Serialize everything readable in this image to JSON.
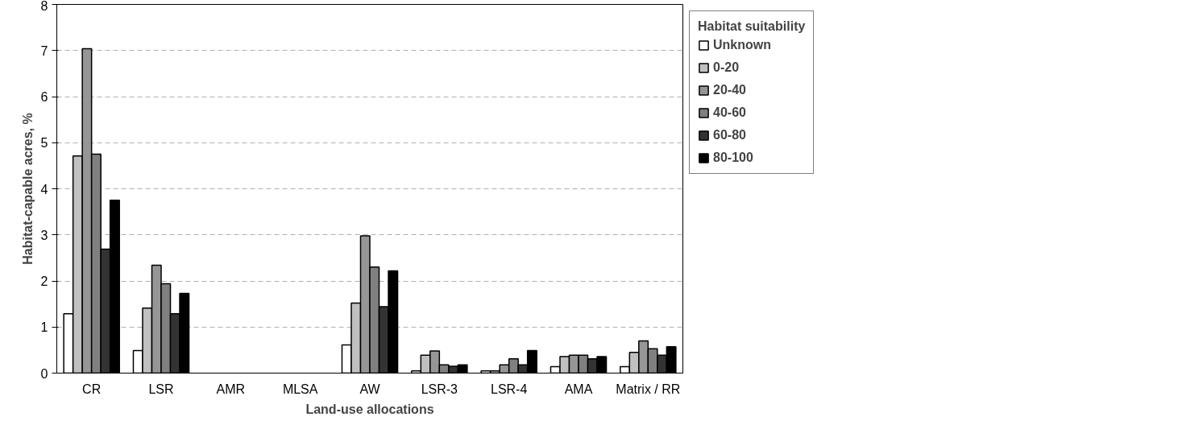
{
  "chart_data": {
    "type": "bar",
    "xlabel": "Land-use allocations",
    "ylabel": "Habitat-capable acres, %",
    "legend_title": "Habitat suitability",
    "categories": [
      "CR",
      "LSR",
      "AMR",
      "MLSA",
      "AW",
      "LSR-3",
      "LSR-4",
      "AMA",
      "Matrix / RR"
    ],
    "series": [
      {
        "name": "Unknown",
        "color": "#ffffff",
        "values": [
          1.29,
          0.49,
          null,
          null,
          0.61,
          0.05,
          0.05,
          0.14,
          0.14
        ]
      },
      {
        "name": "0-20",
        "color": "#c0c0c0",
        "values": [
          4.71,
          1.41,
          null,
          null,
          1.52,
          0.39,
          0.05,
          0.36,
          0.45
        ]
      },
      {
        "name": "20-40",
        "color": "#969696",
        "values": [
          7.04,
          2.34,
          null,
          null,
          2.98,
          0.48,
          0.18,
          0.39,
          0.7
        ]
      },
      {
        "name": "40-60",
        "color": "#808080",
        "values": [
          4.75,
          1.94,
          null,
          null,
          2.3,
          0.18,
          0.31,
          0.39,
          0.53
        ]
      },
      {
        "name": "60-80",
        "color": "#333333",
        "values": [
          2.69,
          1.29,
          null,
          null,
          1.44,
          0.15,
          0.18,
          0.31,
          0.39
        ]
      },
      {
        "name": "80-100",
        "color": "#000000",
        "values": [
          3.75,
          1.73,
          null,
          null,
          2.22,
          0.18,
          0.49,
          0.36,
          0.57
        ]
      }
    ],
    "ylim": [
      0,
      8
    ],
    "yticks": [
      0,
      1,
      2,
      3,
      4,
      5,
      6,
      7,
      8
    ],
    "grid": "y",
    "legend": "right"
  }
}
